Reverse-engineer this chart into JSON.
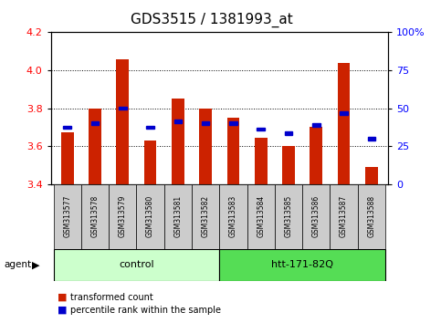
{
  "title": "GDS3515 / 1381993_at",
  "categories": [
    "GSM313577",
    "GSM313578",
    "GSM313579",
    "GSM313580",
    "GSM313581",
    "GSM313582",
    "GSM313583",
    "GSM313584",
    "GSM313585",
    "GSM313586",
    "GSM313587",
    "GSM313588"
  ],
  "red_values": [
    3.675,
    3.8,
    4.06,
    3.63,
    3.85,
    3.8,
    3.75,
    3.645,
    3.6,
    3.7,
    4.04,
    3.49
  ],
  "blue_values": [
    3.7,
    3.72,
    3.8,
    3.7,
    3.73,
    3.72,
    3.72,
    3.69,
    3.668,
    3.71,
    3.775,
    3.638
  ],
  "y_min": 3.4,
  "y_max": 4.2,
  "y_ticks_left": [
    3.4,
    3.6,
    3.8,
    4.0,
    4.2
  ],
  "y_ticks_right": [
    0,
    25,
    50,
    75,
    100
  ],
  "bar_color": "#cc2200",
  "marker_color": "#0000cc",
  "bg_color": "#ffffff",
  "control_label": "control",
  "treatment_label": "htt-171-82Q",
  "control_bg": "#ccffcc",
  "treatment_bg": "#55dd55",
  "agent_label": "agent",
  "legend_red": "transformed count",
  "legend_blue": "percentile rank within the sample",
  "n_control": 6,
  "n_treatment": 6,
  "title_fontsize": 11,
  "bar_width": 0.45
}
